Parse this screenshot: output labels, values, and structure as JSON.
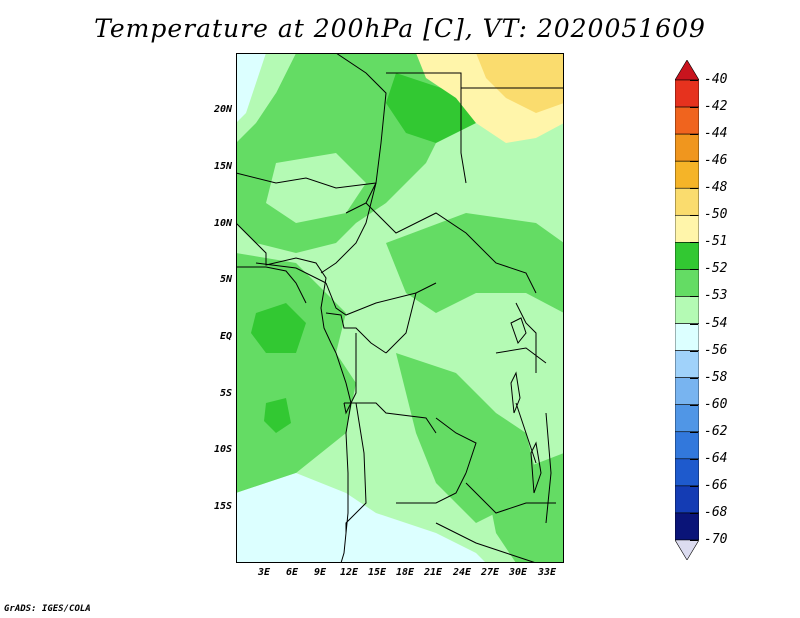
{
  "title": "Temperature at 200hPa [C], VT: 2020051609",
  "credit": "GrADS: IGES/COLA",
  "lat_labels": [
    "20N",
    "15N",
    "10N",
    "5N",
    "EQ",
    "5S",
    "10S",
    "15S"
  ],
  "lon_labels": [
    "3E",
    "6E",
    "9E",
    "12E",
    "15E",
    "18E",
    "21E",
    "24E",
    "27E",
    "30E",
    "33E"
  ],
  "colorbar": {
    "labels": [
      "-40",
      "-42",
      "-44",
      "-46",
      "-48",
      "-50",
      "-51",
      "-52",
      "-53",
      "-54",
      "-56",
      "-58",
      "-60",
      "-62",
      "-64",
      "-66",
      "-68",
      "-70"
    ],
    "colors": [
      "#c8141e",
      "#e6321e",
      "#f0641e",
      "#f0961e",
      "#f5b428",
      "#fadc6e",
      "#fff5aa",
      "#32c832",
      "#64dc64",
      "#b4fab4",
      "#dcffff",
      "#a0d2fa",
      "#78b4f0",
      "#5096e6",
      "#3278dc",
      "#1e5acd",
      "#143cb4",
      "#0a1478",
      "#dcdcf0"
    ]
  }
}
